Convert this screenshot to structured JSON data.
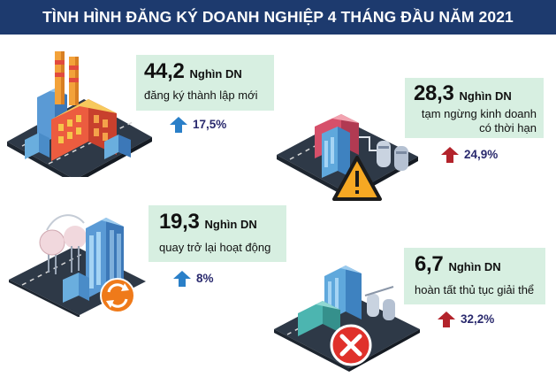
{
  "title": "TÌNH HÌNH ĐĂNG KÝ DOANH NGHIỆP 4 THÁNG ĐẦU NĂM 2021",
  "colors": {
    "banner": "#1d3a6e",
    "card": "#d7efe1",
    "up_blue": "#2a7fc8",
    "up_red": "#b3232b",
    "stat_text": "#2a2a6e"
  },
  "panels": [
    {
      "number": "44,2",
      "unit": "Nghìn DN",
      "description": [
        "đăng ký thành lập mới"
      ],
      "change": "17,5%",
      "arrow_icon": "arrow-up-blue-icon"
    },
    {
      "number": "28,3",
      "unit": "Nghìn DN",
      "description": [
        "tạm ngừng kinh doanh",
        "có thời hạn"
      ],
      "change": "24,9%",
      "arrow_icon": "arrow-up-red-icon",
      "badge_icon": "warning-icon"
    },
    {
      "number": "19,3",
      "unit": "Nghìn DN",
      "description": [
        "quay trở lại hoạt động"
      ],
      "change": "8%",
      "arrow_icon": "arrow-up-blue-icon",
      "badge_icon": "refresh-icon"
    },
    {
      "number": "6,7",
      "unit": "Nghìn DN",
      "description": [
        "hoàn tất thủ tục giải thể"
      ],
      "change": "32,2%",
      "arrow_icon": "arrow-up-red-icon",
      "badge_icon": "close-icon"
    }
  ]
}
